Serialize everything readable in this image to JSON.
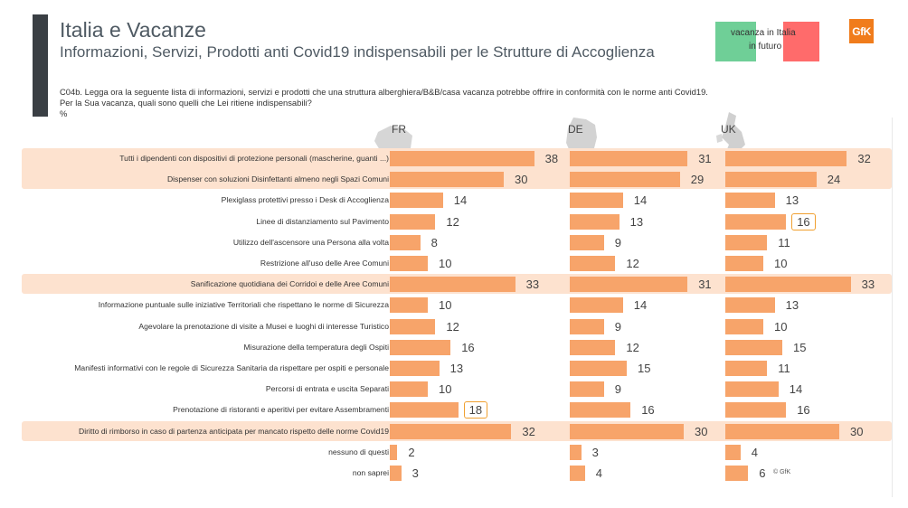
{
  "header": {
    "title": "Italia e Vacanze",
    "subtitle": "Informazioni, Servizi, Prodotti anti Covid19 indispensabili per le Strutture di Accoglienza",
    "question_line1": "C04b. Legga ora la seguente lista di informazioni, servizi e prodotti che una struttura alberghiera/B&B/casa vacanza potrebbe offrire in conformità con le norme anti Covid19.",
    "question_line2": "Per la Sua vacanza, quali sono quelli che Lei ritiene indispensabili?",
    "unit": "%"
  },
  "legend": {
    "part1": "vacanza in",
    "part2": "Italia",
    "part3": "in futuro",
    "green": "#6fcf97",
    "red": "#ff6b6b"
  },
  "logo": {
    "text": "GfK",
    "color": "#f07c1c"
  },
  "copyright": "© GfK",
  "chart_data": {
    "type": "bar",
    "orientation": "horizontal",
    "bar_color": "#f7a46a",
    "highlight_color": "#fde2cf",
    "categories": [
      "Tutti i dipendenti con dispositivi di protezione personali (mascherine, guanti ...)",
      "Dispenser con soluzioni Disinfettanti almeno negli Spazi Comuni",
      "Plexiglass protettivi presso i Desk di Accoglienza",
      "Linee di distanziamento sul Pavimento",
      "Utilizzo dell'ascensore una Persona alla volta",
      "Restrizione all'uso delle Aree Comuni",
      "Sanificazione quotidiana dei Corridoi e delle Aree Comuni",
      "Informazione puntuale sulle iniziative Territoriali che rispettano le norme di Sicurezza",
      "Agevolare la prenotazione di visite a Musei e luoghi di interesse Turistico",
      "Misurazione della temperatura degli Ospiti",
      "Manifesti informativi con le regole di Sicurezza Sanitaria da rispettare per ospiti e personale",
      "Percorsi di entrata e uscita Separati",
      "Prenotazione di ristoranti e aperitivi per evitare Assembramenti",
      "Diritto di rimborso in caso di partenza anticipata per mancato rispetto delle norme Covid19",
      "nessuno di questi",
      "non saprei"
    ],
    "highlighted_rows": [
      0,
      1,
      6,
      13
    ],
    "series": [
      {
        "name": "FR",
        "values": [
          38,
          30,
          14,
          12,
          8,
          10,
          33,
          10,
          12,
          16,
          13,
          10,
          18,
          32,
          2,
          3
        ],
        "boxed": [
          12
        ]
      },
      {
        "name": "DE",
        "values": [
          31,
          29,
          14,
          13,
          9,
          12,
          31,
          14,
          9,
          12,
          15,
          9,
          16,
          30,
          3,
          4
        ],
        "boxed": []
      },
      {
        "name": "UK",
        "values": [
          32,
          24,
          13,
          16,
          11,
          10,
          33,
          13,
          10,
          15,
          11,
          14,
          16,
          30,
          4,
          6
        ],
        "boxed": [
          3
        ]
      }
    ]
  }
}
